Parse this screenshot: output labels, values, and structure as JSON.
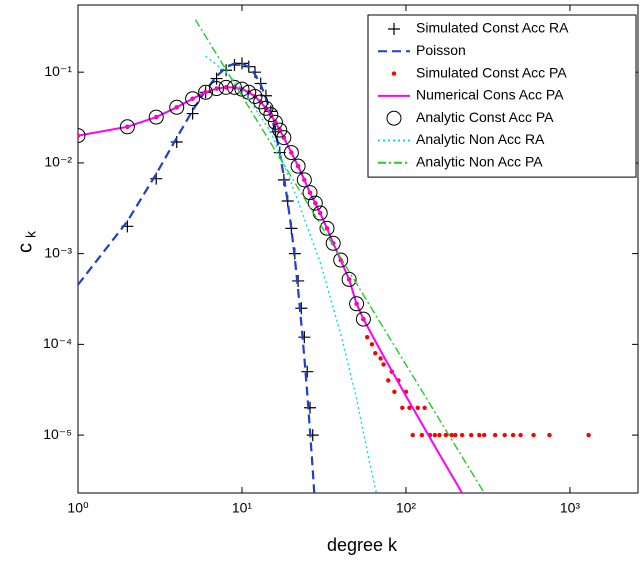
{
  "chart_data": {
    "type": "line",
    "xlabel": "degree k",
    "ylabel": "c",
    "ylabel_subscript": "k",
    "xscale": "log",
    "yscale": "log",
    "xlim": [
      1,
      2600
    ],
    "ylim": [
      2.3e-06,
      0.55
    ],
    "xticks": [
      {
        "value": 1,
        "label": "10⁰"
      },
      {
        "value": 10,
        "label": "10¹"
      },
      {
        "value": 100,
        "label": "10²"
      },
      {
        "value": 1000,
        "label": "10³"
      }
    ],
    "yticks": [
      {
        "value": 1e-05,
        "label": "10⁻⁵"
      },
      {
        "value": 0.0001,
        "label": "10⁻⁴"
      },
      {
        "value": 0.001,
        "label": "10⁻³"
      },
      {
        "value": 0.01,
        "label": "10⁻²"
      },
      {
        "value": 0.1,
        "label": "10⁻¹"
      }
    ],
    "legend": "upper right",
    "series": [
      {
        "name": "Simulated Const Acc RA",
        "color": "#000000",
        "marker": "plus",
        "line": "none",
        "x": [
          2,
          3,
          4,
          5,
          6,
          7,
          8,
          9,
          10,
          11,
          12,
          13,
          14,
          15,
          16,
          17,
          18,
          19,
          20,
          21,
          22,
          23,
          24,
          25,
          26,
          27
        ],
        "values": [
          0.002,
          0.0067,
          0.017,
          0.035,
          0.06,
          0.085,
          0.105,
          0.12,
          0.125,
          0.115,
          0.1,
          0.075,
          0.055,
          0.037,
          0.022,
          0.013,
          0.0065,
          0.0038,
          0.0019,
          0.001,
          0.0005,
          0.00025,
          0.00012,
          5e-05,
          2e-05,
          1e-05
        ]
      },
      {
        "name": "Poisson",
        "color": "#1f3fd0",
        "marker": "none",
        "line": "dashed",
        "x": [
          1,
          2,
          3,
          4,
          5,
          6,
          7,
          8,
          9,
          10,
          11,
          12,
          13,
          14,
          15,
          16,
          17,
          18,
          19,
          20,
          21,
          22,
          23,
          24,
          25,
          26,
          27,
          28
        ],
        "values": [
          0.000454,
          0.00227,
          0.00757,
          0.0189,
          0.0378,
          0.0631,
          0.0901,
          0.1126,
          0.1251,
          0.1251,
          0.1137,
          0.0948,
          0.0729,
          0.0521,
          0.0347,
          0.0217,
          0.0128,
          0.0071,
          0.0037,
          0.0019,
          0.00089,
          0.0004,
          0.00017,
          7.2e-05,
          2.9e-05,
          1.1e-05,
          4.2e-06,
          1.5e-06
        ]
      },
      {
        "name": "Simulated Const Acc PA",
        "color": "#ff0000",
        "marker": "dot",
        "line": "none",
        "x": [
          1,
          2,
          3,
          4,
          5,
          6,
          7,
          8,
          9,
          10,
          11,
          12,
          13,
          14,
          15,
          16,
          17,
          18,
          20,
          22,
          24,
          26,
          28,
          30,
          33,
          36,
          40,
          45,
          50,
          55,
          58,
          62,
          65,
          70,
          73,
          78,
          82,
          85,
          90,
          95,
          100,
          105,
          110,
          118,
          125,
          130,
          140,
          150,
          160,
          175,
          190,
          200,
          220,
          250,
          280,
          300,
          350,
          400,
          450,
          500,
          600,
          750,
          1300
        ],
        "values": [
          0.02,
          0.025,
          0.032,
          0.041,
          0.051,
          0.06,
          0.066,
          0.068,
          0.068,
          0.065,
          0.06,
          0.054,
          0.047,
          0.04,
          0.034,
          0.028,
          0.023,
          0.019,
          0.013,
          0.0092,
          0.0065,
          0.0047,
          0.0036,
          0.0028,
          0.0019,
          0.0013,
          0.00085,
          0.00052,
          0.00028,
          0.00019,
          0.00012,
          0.0001,
          8e-05,
          7e-05,
          6e-05,
          4e-05,
          5e-05,
          3e-05,
          4e-05,
          2e-05,
          3e-05,
          2e-05,
          1e-05,
          2e-05,
          1e-05,
          2e-05,
          1e-05,
          1e-05,
          1e-05,
          1e-05,
          1e-05,
          1e-05,
          1e-05,
          1e-05,
          1e-05,
          1e-05,
          1e-05,
          1e-05,
          1e-05,
          1e-05,
          1e-05,
          1e-05,
          1e-05
        ]
      },
      {
        "name": "Numerical Cons Acc PA",
        "color": "#ff00ff",
        "marker": "none",
        "line": "solid",
        "x": [
          1,
          2,
          3,
          4,
          5,
          6,
          7,
          8,
          9,
          10,
          11,
          12,
          13,
          14,
          15,
          16,
          17,
          18,
          20,
          22,
          24,
          26,
          28,
          30,
          33,
          36,
          40,
          45,
          50,
          55,
          70,
          100,
          150,
          220
        ],
        "values": [
          0.02,
          0.025,
          0.032,
          0.041,
          0.051,
          0.06,
          0.066,
          0.068,
          0.068,
          0.065,
          0.06,
          0.054,
          0.047,
          0.04,
          0.034,
          0.028,
          0.023,
          0.019,
          0.013,
          0.0092,
          0.0065,
          0.0047,
          0.0036,
          0.0028,
          0.0019,
          0.0013,
          0.00085,
          0.00052,
          0.00028,
          0.00019,
          8.5e-05,
          2.7e-05,
          7.5e-06,
          2.3e-06
        ]
      },
      {
        "name": "Analytic Const Acc PA",
        "color": "#000000",
        "marker": "circle",
        "line": "none",
        "x": [
          1,
          2,
          3,
          4,
          5,
          6,
          7,
          8,
          9,
          10,
          11,
          12,
          13,
          14,
          15,
          16,
          17,
          18,
          20,
          22,
          24,
          26,
          28,
          30,
          33,
          36,
          40,
          45,
          50,
          55
        ],
        "values": [
          0.02,
          0.025,
          0.032,
          0.041,
          0.051,
          0.06,
          0.066,
          0.068,
          0.068,
          0.065,
          0.06,
          0.054,
          0.047,
          0.04,
          0.034,
          0.028,
          0.023,
          0.019,
          0.013,
          0.0092,
          0.0065,
          0.0047,
          0.0036,
          0.0028,
          0.0019,
          0.0013,
          0.00085,
          0.00052,
          0.00028,
          0.00019
        ]
      },
      {
        "name": "Analytic Non Acc RA",
        "color": "#00e0e0",
        "marker": "none",
        "line": "dotted",
        "x": [
          6,
          8,
          10,
          15,
          20,
          30,
          40,
          50,
          60,
          66
        ],
        "values": [
          0.15,
          0.1,
          0.065,
          0.022,
          0.006,
          0.0008,
          0.00013,
          2.5e-05,
          5e-06,
          2.3e-06
        ]
      },
      {
        "name": "Analytic Non Acc PA",
        "color": "#22cc22",
        "marker": "none",
        "line": "dashdot",
        "x": [
          5.2,
          300
        ],
        "values": [
          0.38,
          2.3e-06
        ]
      }
    ]
  }
}
